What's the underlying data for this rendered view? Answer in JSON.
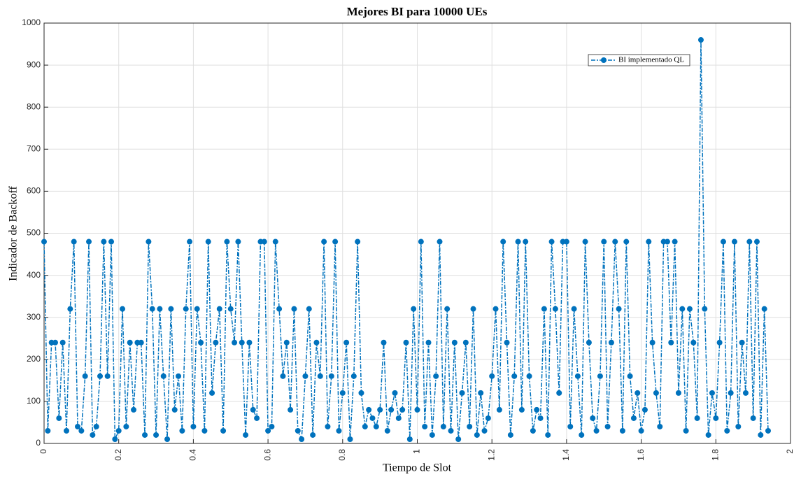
{
  "chart_data": {
    "type": "line",
    "title": "Mejores BI para 10000 UEs",
    "x_label": "Tiempo de Slot",
    "y_label": "Indicador de Backoff",
    "x": [
      0,
      0.01,
      0.02,
      0.03,
      0.04,
      0.05,
      0.06,
      0.07,
      0.08,
      0.09,
      0.1,
      0.11,
      0.12,
      0.13,
      0.14,
      0.15,
      0.16,
      0.17,
      0.18,
      0.19,
      0.2,
      0.21,
      0.22,
      0.23,
      0.24,
      0.25,
      0.26,
      0.27,
      0.28,
      0.29,
      0.3,
      0.31,
      0.32,
      0.33,
      0.34,
      0.35,
      0.36,
      0.37,
      0.38,
      0.39,
      0.4,
      0.41,
      0.42,
      0.43,
      0.44,
      0.45,
      0.46,
      0.47,
      0.48,
      0.49,
      0.5,
      0.51,
      0.52,
      0.53,
      0.54,
      0.55,
      0.56,
      0.57,
      0.58,
      0.59,
      0.6,
      0.61,
      0.62,
      0.63,
      0.64,
      0.65,
      0.66,
      0.67,
      0.68,
      0.69,
      0.7,
      0.71,
      0.72,
      0.73,
      0.74,
      0.75,
      0.76,
      0.77,
      0.78,
      0.79,
      0.8,
      0.81,
      0.82,
      0.83,
      0.84,
      0.85,
      0.86,
      0.87,
      0.88,
      0.89,
      0.9,
      0.91,
      0.92,
      0.93,
      0.94,
      0.95,
      0.96,
      0.97,
      0.98,
      0.99,
      1,
      1.01,
      1.02,
      1.03,
      1.04,
      1.05,
      1.06,
      1.07,
      1.08,
      1.09,
      1.1,
      1.11,
      1.12,
      1.13,
      1.14,
      1.15,
      1.16,
      1.17,
      1.18,
      1.19,
      1.2,
      1.21,
      1.22,
      1.23,
      1.24,
      1.25,
      1.26,
      1.27,
      1.28,
      1.29,
      1.3,
      1.31,
      1.32,
      1.33,
      1.34,
      1.35,
      1.36,
      1.37,
      1.38,
      1.39,
      1.4,
      1.41,
      1.42,
      1.43,
      1.44,
      1.45,
      1.46,
      1.47,
      1.48,
      1.49,
      1.5,
      1.51,
      1.52,
      1.53,
      1.54,
      1.55,
      1.56,
      1.57,
      1.58,
      1.59,
      1.6,
      1.61,
      1.62,
      1.63,
      1.64,
      1.65,
      1.66,
      1.67,
      1.68,
      1.69,
      1.7,
      1.71,
      1.72,
      1.73,
      1.74,
      1.75,
      1.76,
      1.77,
      1.78,
      1.79,
      1.8,
      1.81,
      1.82,
      1.83,
      1.84,
      1.85,
      1.86,
      1.87,
      1.88,
      1.89,
      1.9,
      1.91,
      1.92,
      1.93,
      1.94
    ],
    "series": [
      {
        "name": "BI implementado QL",
        "color": "#0072BD",
        "values": [
          480,
          30,
          240,
          240,
          60,
          240,
          30,
          320,
          480,
          40,
          30,
          160,
          480,
          20,
          40,
          160,
          480,
          160,
          480,
          10,
          30,
          320,
          40,
          240,
          80,
          240,
          240,
          20,
          480,
          320,
          20,
          320,
          160,
          10,
          320,
          80,
          160,
          30,
          320,
          480,
          40,
          320,
          240,
          30,
          480,
          120,
          240,
          320,
          30,
          480,
          320,
          240,
          480,
          240,
          20,
          240,
          80,
          60,
          480,
          480,
          30,
          40,
          480,
          320,
          160,
          240,
          80,
          320,
          30,
          10,
          160,
          320,
          20,
          240,
          160,
          480,
          40,
          160,
          480,
          30,
          120,
          240,
          10,
          160,
          480,
          120,
          40,
          80,
          60,
          40,
          80,
          240,
          30,
          80,
          120,
          60,
          80,
          240,
          10,
          320,
          80,
          480,
          40,
          240,
          20,
          160,
          480,
          40,
          320,
          30,
          240,
          10,
          120,
          240,
          40,
          320,
          20,
          120,
          30,
          60,
          160,
          320,
          80,
          480,
          240,
          20,
          160,
          480,
          80,
          480,
          160,
          30,
          80,
          60,
          320,
          20,
          480,
          320,
          120,
          480,
          480,
          40,
          320,
          160,
          20,
          480,
          240,
          60,
          30,
          160,
          480,
          40,
          240,
          480,
          320,
          30,
          480,
          160,
          60,
          120,
          30,
          80,
          480,
          240,
          120,
          40,
          480,
          480,
          240,
          480,
          120,
          320,
          30,
          320,
          240,
          60,
          960,
          320,
          20,
          120,
          60,
          240,
          480,
          30,
          120,
          480,
          40,
          240,
          120,
          480,
          60,
          480,
          20,
          320,
          30
        ]
      }
    ],
    "xlim": [
      0,
      2
    ],
    "xticks": [
      0,
      0.2,
      0.4,
      0.6,
      0.8,
      1,
      1.2,
      1.4,
      1.6,
      1.8,
      2
    ],
    "ylim": [
      0,
      1000
    ],
    "yticks": [
      0,
      100,
      200,
      300,
      400,
      500,
      600,
      700,
      800,
      900,
      1000
    ],
    "grid": true,
    "legend": "northeast"
  }
}
